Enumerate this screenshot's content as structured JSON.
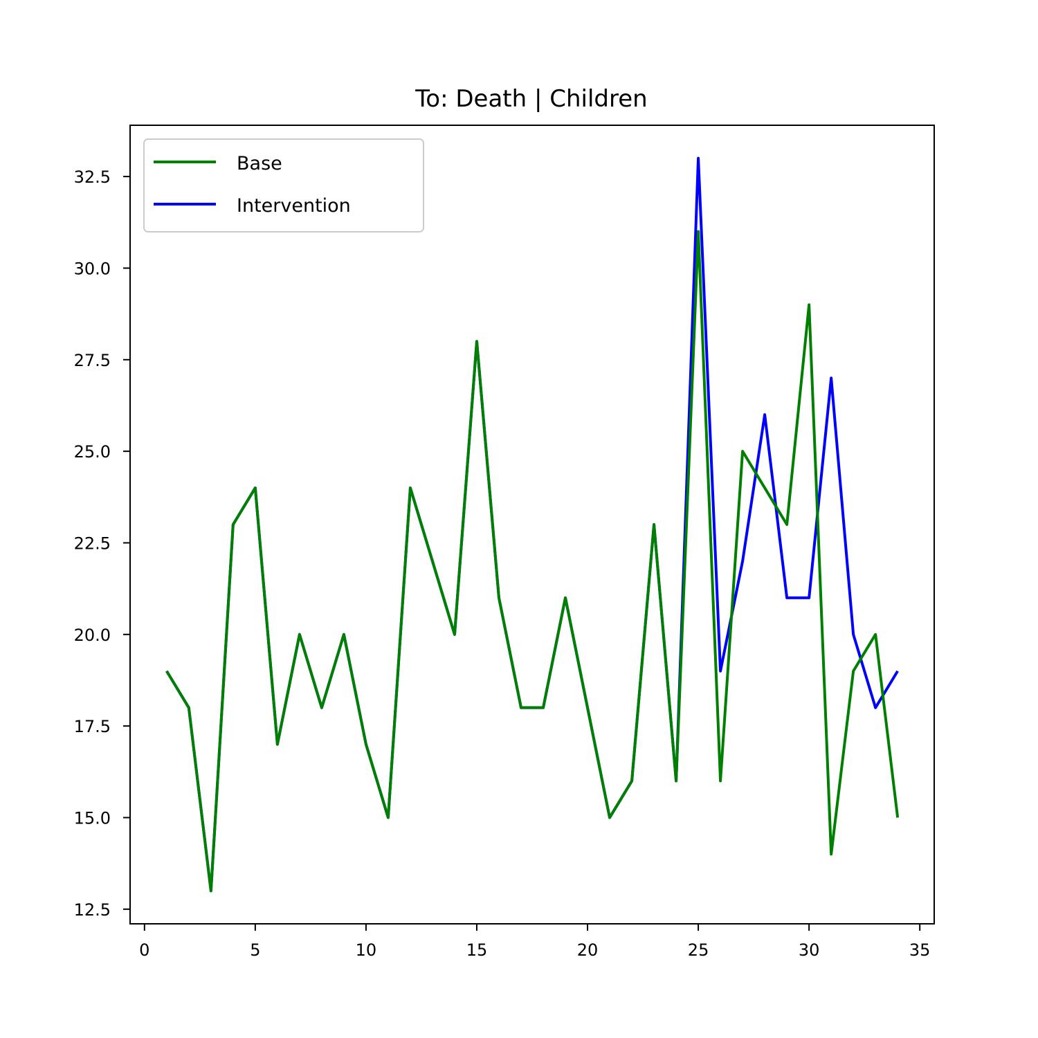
{
  "chart_data": {
    "type": "line",
    "title": "To: Death | Children",
    "xlabel": "",
    "ylabel": "",
    "xlim": [
      -0.65,
      35.65
    ],
    "ylim": [
      12.1,
      33.9
    ],
    "xticks": [
      0,
      5,
      10,
      15,
      20,
      25,
      30,
      35
    ],
    "xtick_labels": [
      "0",
      "5",
      "10",
      "15",
      "20",
      "25",
      "30",
      "35"
    ],
    "yticks": [
      12.5,
      15.0,
      17.5,
      20.0,
      22.5,
      25.0,
      27.5,
      30.0,
      32.5
    ],
    "ytick_labels": [
      "12.5",
      "15.0",
      "17.5",
      "20.0",
      "22.5",
      "25.0",
      "27.5",
      "30.0",
      "32.5"
    ],
    "grid": false,
    "legend_position": "top-left",
    "x": [
      1,
      2,
      3,
      4,
      5,
      6,
      7,
      8,
      9,
      10,
      11,
      12,
      13,
      14,
      15,
      16,
      17,
      18,
      19,
      20,
      21,
      22,
      23,
      24,
      25,
      26,
      27,
      28,
      29,
      30,
      31,
      32,
      33,
      34
    ],
    "series": [
      {
        "name": "Base",
        "color": "#008000",
        "values": [
          19,
          18,
          13,
          23,
          24,
          17,
          20,
          18,
          20,
          17,
          15,
          24,
          22,
          20,
          28,
          21,
          18,
          18,
          21,
          18,
          15,
          16,
          23,
          16,
          31,
          16,
          25,
          24,
          23,
          29,
          14,
          19,
          20,
          15
        ]
      },
      {
        "name": "Intervention",
        "color": "#0000ff",
        "values": [
          19,
          18,
          13,
          23,
          24,
          17,
          20,
          18,
          20,
          17,
          15,
          24,
          22,
          20,
          28,
          21,
          18,
          18,
          21,
          18,
          15,
          16,
          23,
          16,
          33,
          19,
          22,
          26,
          21,
          21,
          27,
          20,
          18,
          19
        ]
      }
    ],
    "draw_order": [
      "Intervention",
      "Base",
      "Intervention",
      "Base"
    ]
  }
}
